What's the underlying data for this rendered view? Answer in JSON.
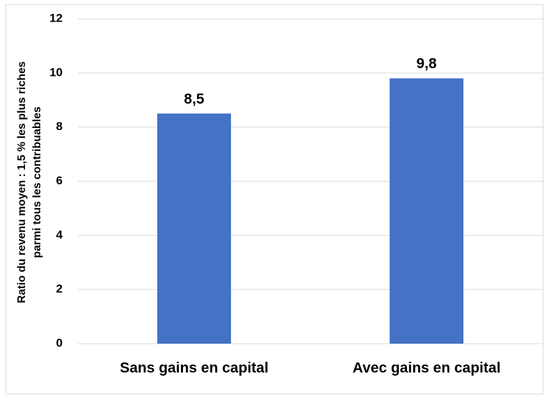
{
  "chart_data": {
    "type": "bar",
    "ylabel": [
      "Ratio du revenu moyen : 1,5 % les plus riches",
      "parmi tous les contribuables"
    ],
    "categories": [
      "Sans gains en capital",
      "Avec gains en capital"
    ],
    "values": [
      8.5,
      9.8
    ],
    "value_labels": [
      "8,5",
      "9,8"
    ],
    "color": "#4472c4",
    "ylim": [
      0,
      12
    ],
    "yticks": [
      0,
      2,
      4,
      6,
      8,
      10,
      12
    ],
    "grid": true
  }
}
